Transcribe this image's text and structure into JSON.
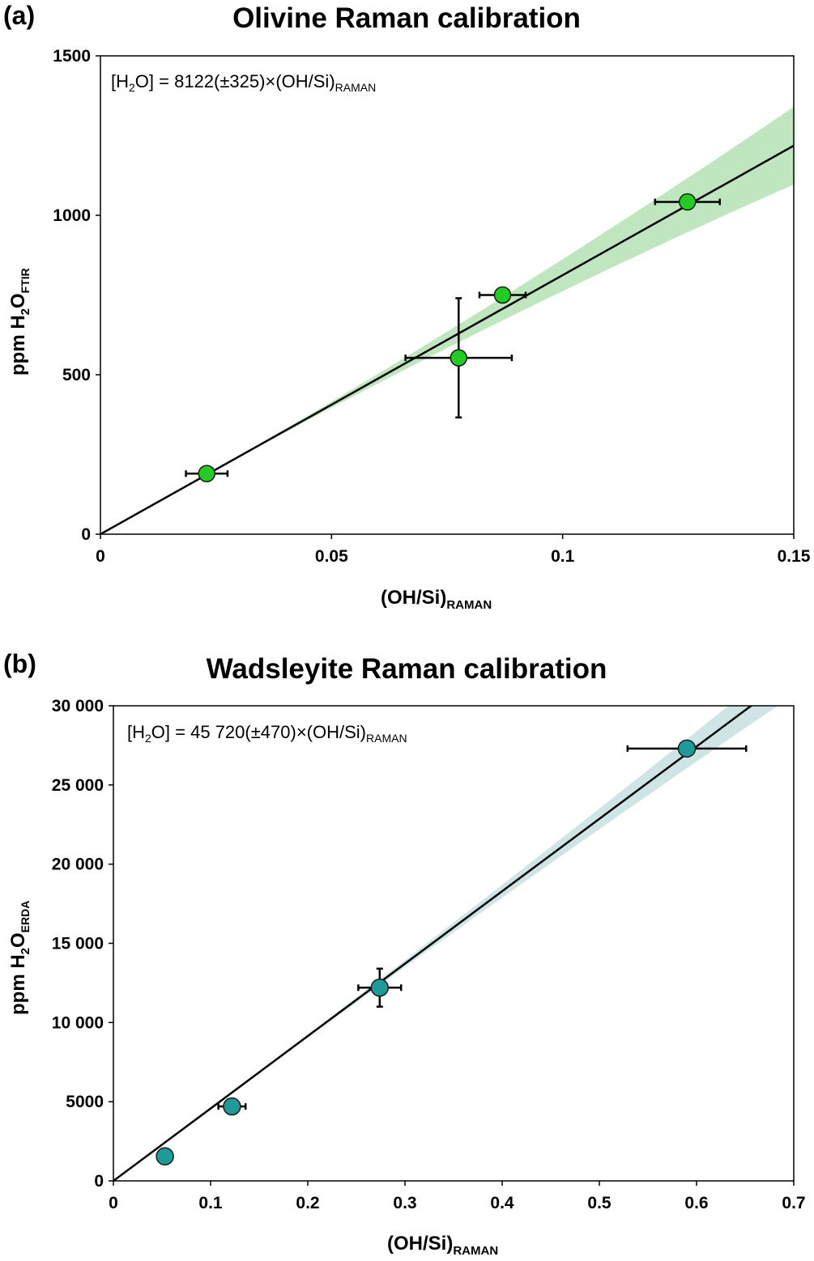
{
  "chart_data": [
    {
      "panel": "(a)",
      "type": "scatter",
      "title": "Olivine Raman calibration",
      "xlabel": {
        "main": "(OH/Si)",
        "sub": "RAMAN"
      },
      "ylabel": {
        "main": "ppm H",
        "sub1": "2",
        "mid": "O",
        "sub2": "FTIR"
      },
      "xlim": [
        0,
        0.15
      ],
      "ylim": [
        0,
        1500
      ],
      "xticks": [
        0,
        0.05,
        0.1,
        0.15
      ],
      "xtick_labels": [
        "0",
        "0.05",
        "0.1",
        "0.15"
      ],
      "yticks": [
        0,
        500,
        1000,
        1500
      ],
      "ytick_labels": [
        "0",
        "500",
        "1000",
        "1500"
      ],
      "equation": {
        "lhs_open": "[H",
        "lhs_sub": "2",
        "lhs_close": "O] = 8122(±325)×(OH/Si)",
        "rhs_sub": "RAMAN"
      },
      "fit": {
        "slope": 8122,
        "slope_err": 325,
        "band_xmin": 0.02,
        "band_err_factor": 2.5
      },
      "marker_color": "#22cc22",
      "band_color": "#bfe6bf",
      "points": [
        {
          "x": 0.023,
          "y": 190,
          "xerr": 0.0045,
          "yerr": 0
        },
        {
          "x": 0.0775,
          "y": 553,
          "xerr": 0.0115,
          "yerr": 187
        },
        {
          "x": 0.087,
          "y": 750,
          "xerr": 0.005,
          "yerr": 0
        },
        {
          "x": 0.127,
          "y": 1042,
          "xerr": 0.007,
          "yerr": 0
        }
      ]
    },
    {
      "panel": "(b)",
      "type": "scatter",
      "title": "Wadsleyite Raman calibration",
      "xlabel": {
        "main": "(OH/Si)",
        "sub": "RAMAN"
      },
      "ylabel": {
        "main": "ppm H",
        "sub1": "2",
        "mid": "O",
        "sub2": "ERDA"
      },
      "xlim": [
        0,
        0.7
      ],
      "ylim": [
        0,
        30000
      ],
      "xticks": [
        0,
        0.1,
        0.2,
        0.3,
        0.4,
        0.5,
        0.6,
        0.7
      ],
      "xtick_labels": [
        "0",
        "0.1",
        "0.2",
        "0.3",
        "0.4",
        "0.5",
        "0.6",
        "0.7"
      ],
      "yticks": [
        0,
        5000,
        10000,
        15000,
        20000,
        25000,
        30000
      ],
      "ytick_labels": [
        "0",
        "5000",
        "10 000",
        "15 000",
        "20 000",
        "25 000",
        "30 000"
      ],
      "equation": {
        "lhs_open": "[H",
        "lhs_sub": "2",
        "lhs_close": "O] = 45 720(±470)×(OH/Si)",
        "rhs_sub": "RAMAN"
      },
      "fit": {
        "slope": 45720,
        "slope_err": 470,
        "band_xmin": 0.05,
        "band_err_factor": 4
      },
      "marker_color": "#1f9a9a",
      "band_color": "#cfe4e4",
      "points": [
        {
          "x": 0.053,
          "y": 1550,
          "xerr": 0,
          "yerr": 0
        },
        {
          "x": 0.122,
          "y": 4700,
          "xerr": 0.014,
          "yerr": 0
        },
        {
          "x": 0.274,
          "y": 12200,
          "xerr": 0.022,
          "yerr": 1200
        },
        {
          "x": 0.59,
          "y": 27300,
          "xerr": 0.061,
          "yerr": 0
        }
      ]
    }
  ]
}
